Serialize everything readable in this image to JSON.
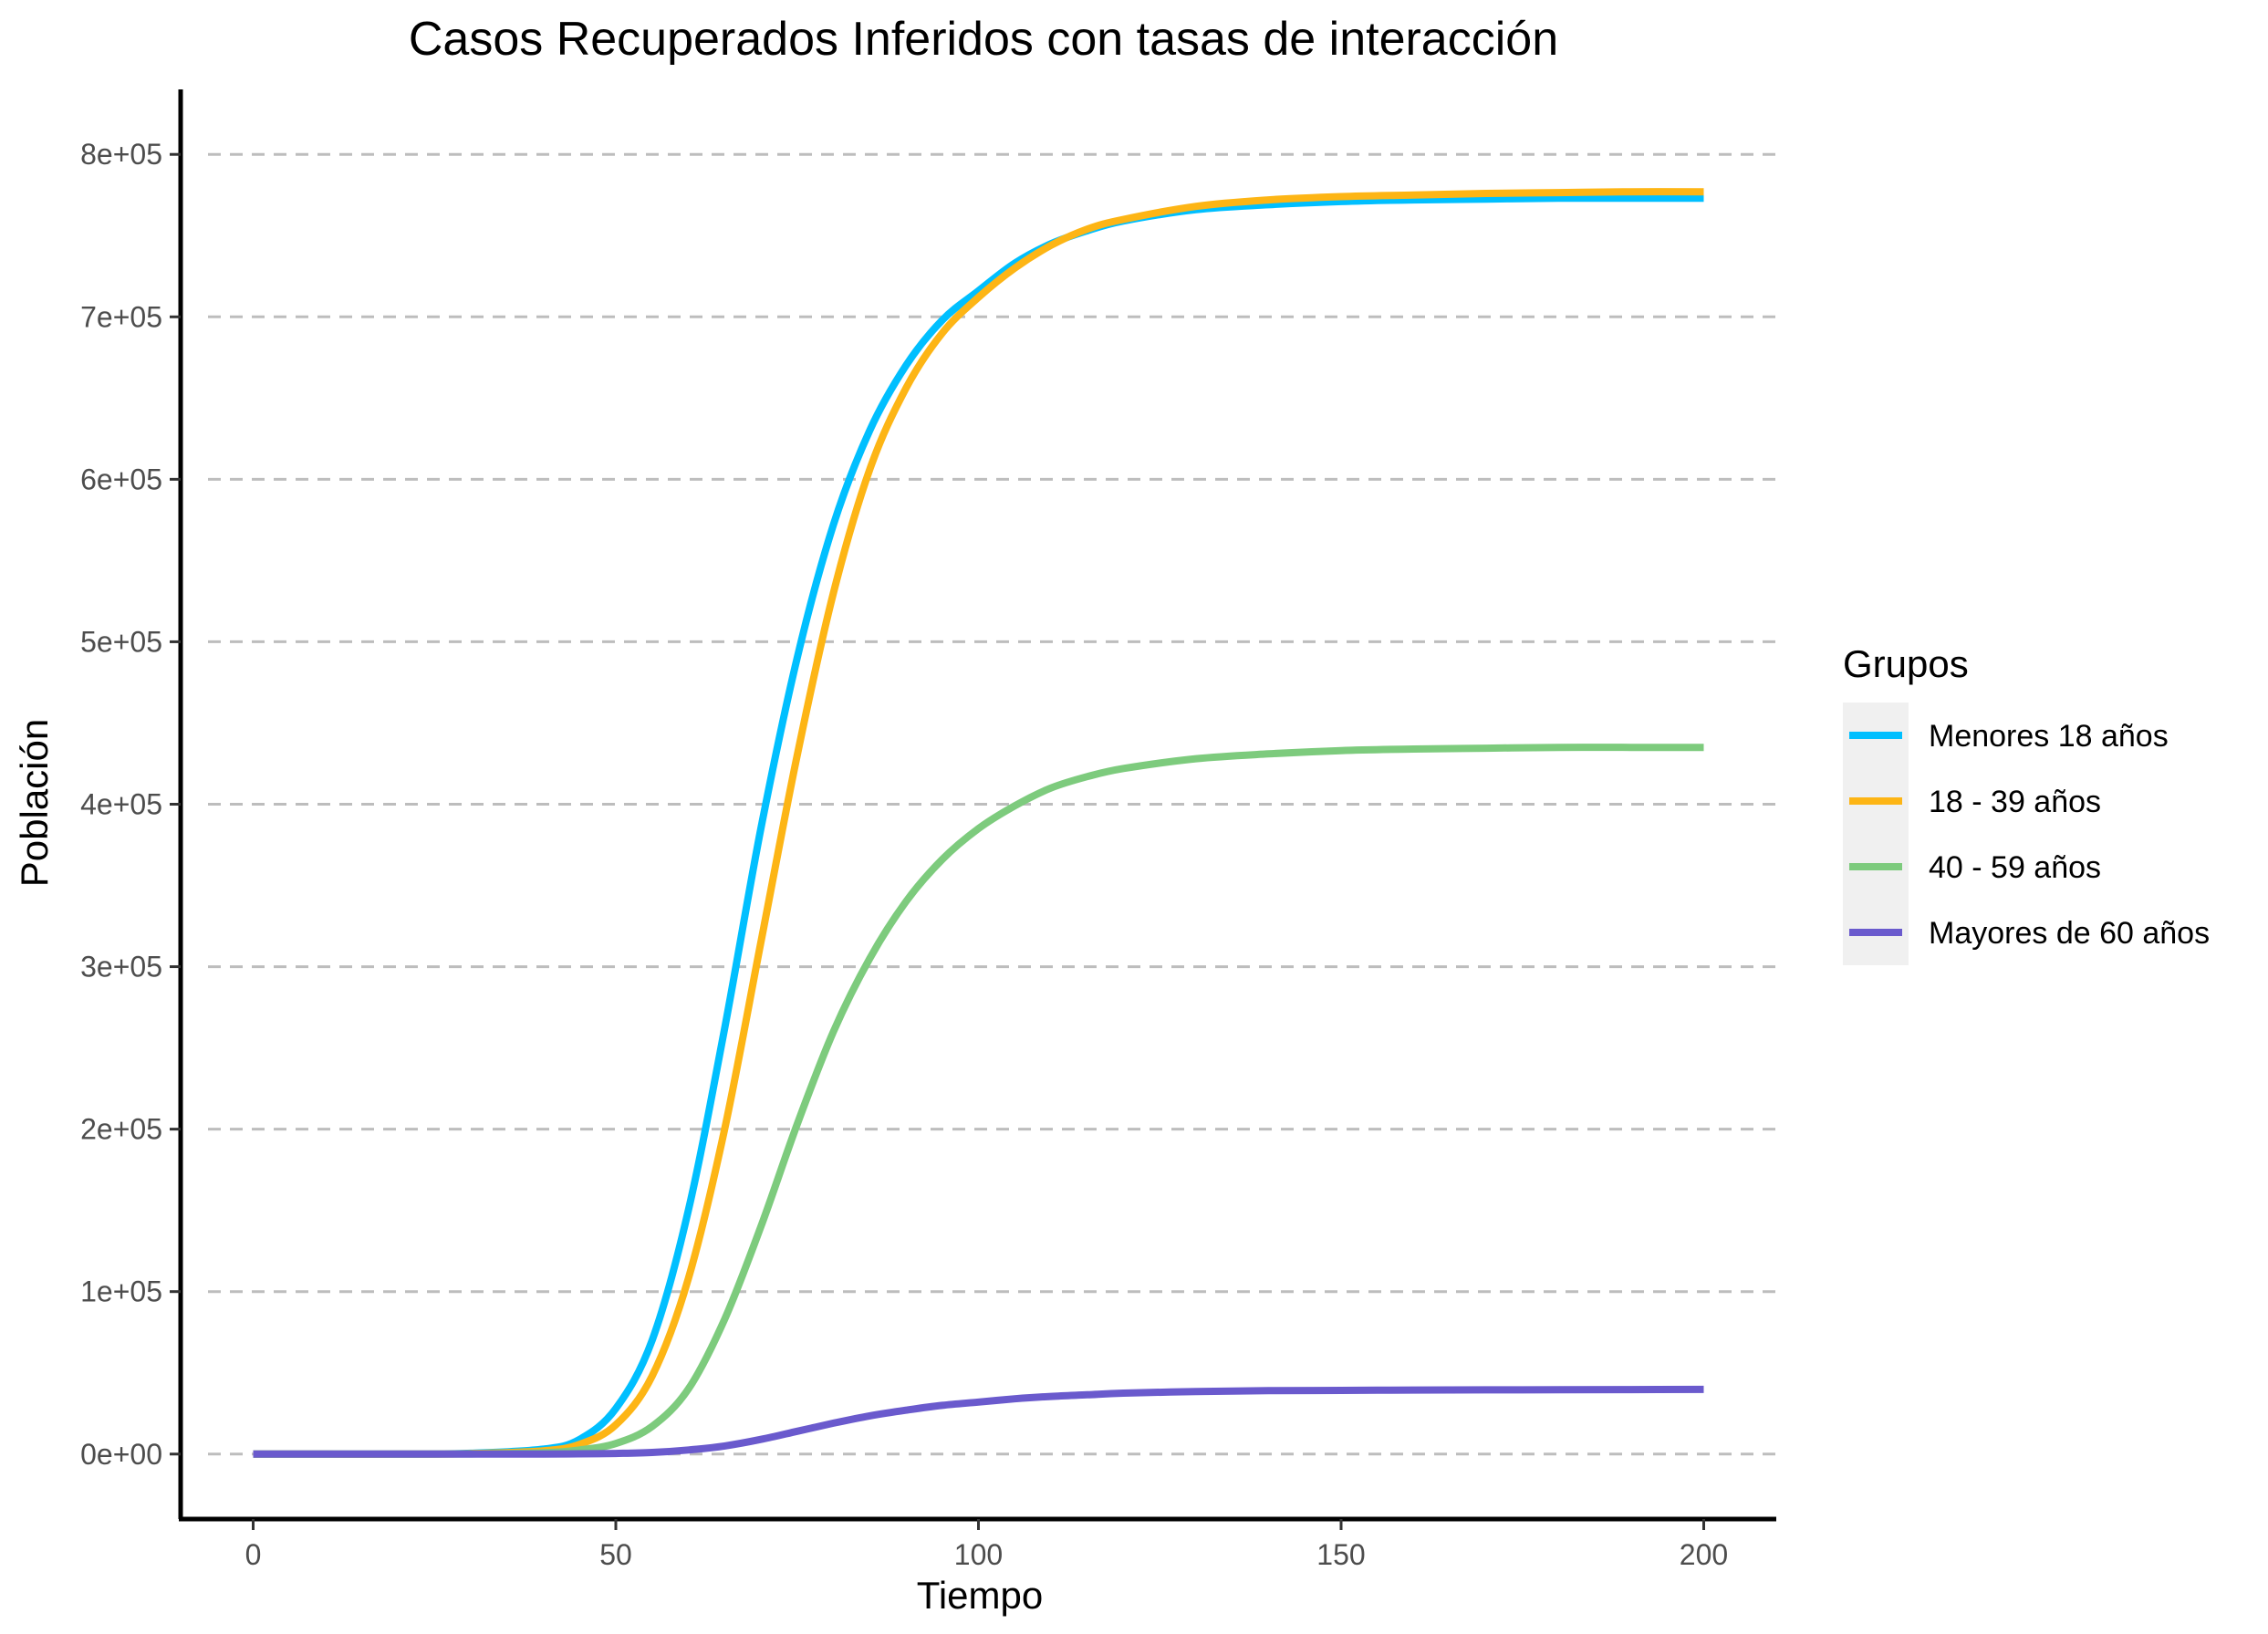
{
  "chart_data": {
    "type": "line",
    "title": "Casos Recuperados Inferidos con tasas de interacción",
    "xlabel": "Tiempo",
    "ylabel": "Población",
    "xlim": [
      -10,
      210
    ],
    "ylim": [
      -40000,
      840000
    ],
    "x_ticks": [
      0,
      50,
      100,
      150,
      200
    ],
    "x_tick_labels": [
      "0",
      "50",
      "100",
      "150",
      "200"
    ],
    "y_ticks": [
      0,
      100000,
      200000,
      300000,
      400000,
      500000,
      600000,
      700000,
      800000
    ],
    "y_tick_labels": [
      "0e+00",
      "1e+05",
      "2e+05",
      "3e+05",
      "4e+05",
      "5e+05",
      "6e+05",
      "7e+05",
      "8e+05"
    ],
    "grid": "horizontal dashed",
    "legend": {
      "title": "Grupos",
      "position": "right"
    },
    "x": [
      0,
      10,
      20,
      30,
      40,
      45,
      50,
      55,
      60,
      65,
      70,
      75,
      80,
      85,
      90,
      95,
      100,
      105,
      110,
      115,
      120,
      130,
      140,
      150,
      160,
      170,
      180,
      190,
      200
    ],
    "series": [
      {
        "name": "Menores 18 años",
        "color": "#00bfff",
        "values": [
          0,
          0,
          0,
          500,
          3000,
          9000,
          28000,
          70000,
          150000,
          262000,
          385000,
          490000,
          572000,
          630000,
          670000,
          698000,
          716000,
          733000,
          745000,
          753000,
          759000,
          766000,
          769000,
          771000,
          772000,
          772500,
          773000,
          773000,
          773000
        ]
      },
      {
        "name": "18 - 39 años",
        "color": "#fdb515",
        "values": [
          0,
          0,
          0,
          300,
          2000,
          6000,
          18000,
          48000,
          108000,
          200000,
          315000,
          430000,
          530000,
          606000,
          656000,
          690000,
          712000,
          730000,
          744000,
          754000,
          760000,
          768000,
          772000,
          774000,
          775000,
          776000,
          776500,
          777000,
          777000
        ]
      },
      {
        "name": "40 - 59 años",
        "color": "#7dcb7d",
        "values": [
          0,
          0,
          0,
          100,
          800,
          2500,
          6500,
          17000,
          40000,
          83000,
          140000,
          203000,
          260000,
          305000,
          340000,
          366000,
          385000,
          399000,
          410000,
          417000,
          422000,
          428000,
          431000,
          433000,
          434000,
          434500,
          435000,
          435000,
          435000
        ]
      },
      {
        "name": "Mayores de 60 años",
        "color": "#6a5acd",
        "values": [
          0,
          0,
          0,
          0,
          50,
          150,
          400,
          1000,
          2500,
          5000,
          9000,
          14000,
          19000,
          23500,
          27000,
          30000,
          32000,
          34000,
          35500,
          36500,
          37500,
          38500,
          39000,
          39200,
          39400,
          39500,
          39600,
          39700,
          39800
        ]
      }
    ]
  }
}
